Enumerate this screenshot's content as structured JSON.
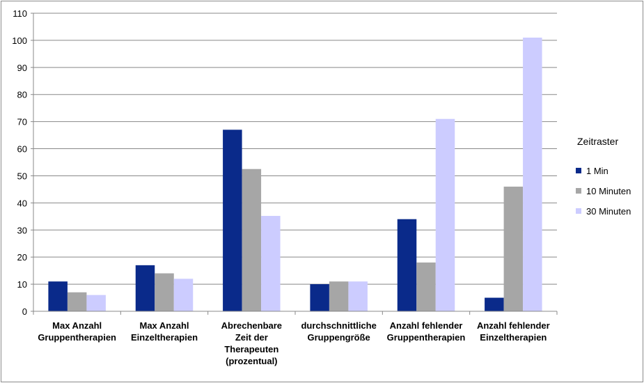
{
  "chart_data": {
    "type": "bar",
    "categories": [
      [
        "Max Anzahl",
        "Gruppentherapien"
      ],
      [
        "Max Anzahl",
        "Einzeltherapien"
      ],
      [
        "Abrechenbare",
        "Zeit der",
        "Therapeuten",
        "(prozentual)"
      ],
      [
        "durchschnittliche",
        "Gruppengröße"
      ],
      [
        "Anzahl fehlender",
        "Gruppentherapien"
      ],
      [
        "Anzahl fehlender",
        "Einzeltherapien"
      ]
    ],
    "series": [
      {
        "name": "1 Min",
        "color": "#0a2a8a",
        "values": [
          11,
          17,
          67,
          10,
          34,
          5
        ]
      },
      {
        "name": "10 Minuten",
        "color": "#a6a6a6",
        "values": [
          7,
          14,
          52.5,
          11,
          18,
          46
        ]
      },
      {
        "name": "30 Minuten",
        "color": "#ccccff",
        "values": [
          6,
          12,
          35.2,
          11,
          71,
          101
        ]
      }
    ],
    "ylim": [
      0,
      110
    ],
    "yticks": [
      0,
      10,
      20,
      30,
      40,
      50,
      60,
      70,
      80,
      90,
      100,
      110
    ],
    "grid": true,
    "legend": {
      "title": "Zeitraster",
      "position": "right"
    }
  }
}
